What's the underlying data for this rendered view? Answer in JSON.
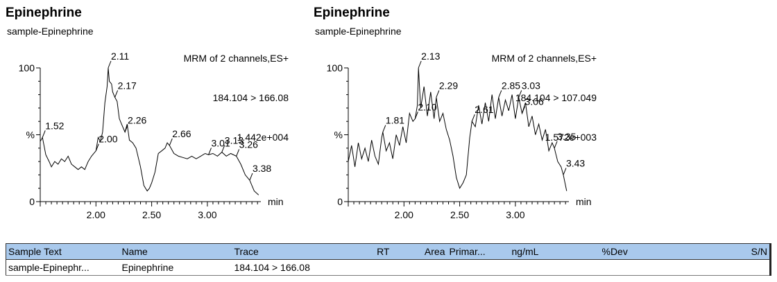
{
  "chart_data": [
    {
      "type": "line",
      "title": "Epinephrine",
      "sample": "sample-Epinephrine",
      "info": [
        "MRM of 2 channels,ES+",
        "184.104 > 166.08",
        "1.442e+004"
      ],
      "xlabel": "min",
      "ylabel": "%",
      "xlim": [
        1.5,
        3.48
      ],
      "ylim": [
        0,
        100
      ],
      "xticks": [
        "2.00",
        "2.50",
        "3.00"
      ],
      "xtick_values": [
        2.0,
        2.5,
        3.0
      ],
      "yticks": [
        "0",
        "100"
      ],
      "x": [
        1.5,
        1.52,
        1.55,
        1.58,
        1.6,
        1.63,
        1.66,
        1.69,
        1.72,
        1.75,
        1.78,
        1.81,
        1.84,
        1.87,
        1.9,
        1.93,
        1.96,
        2.0,
        2.02,
        2.04,
        2.06,
        2.08,
        2.1,
        2.11,
        2.12,
        2.14,
        2.15,
        2.17,
        2.19,
        2.21,
        2.23,
        2.26,
        2.28,
        2.3,
        2.33,
        2.36,
        2.4,
        2.43,
        2.46,
        2.48,
        2.5,
        2.53,
        2.56,
        2.59,
        2.62,
        2.64,
        2.66,
        2.7,
        2.74,
        2.78,
        2.82,
        2.86,
        2.9,
        2.94,
        2.98,
        3.01,
        3.05,
        3.09,
        3.13,
        3.17,
        3.21,
        3.26,
        3.3,
        3.34,
        3.38,
        3.42,
        3.46
      ],
      "y": [
        45,
        48,
        35,
        30,
        26,
        30,
        28,
        32,
        30,
        34,
        28,
        26,
        24,
        26,
        24,
        30,
        34,
        38,
        48,
        45,
        52,
        74,
        86,
        100,
        90,
        88,
        82,
        78,
        75,
        62,
        58,
        52,
        58,
        46,
        44,
        40,
        26,
        12,
        8,
        10,
        14,
        22,
        36,
        38,
        40,
        44,
        42,
        36,
        34,
        33,
        32,
        34,
        32,
        34,
        36,
        35,
        36,
        34,
        37,
        34,
        36,
        34,
        28,
        20,
        16,
        8,
        5
      ],
      "peak_labels": [
        {
          "x": 1.52,
          "y": 48,
          "text": "1.52"
        },
        {
          "x": 2.0,
          "y": 38,
          "text": "2.00"
        },
        {
          "x": 2.11,
          "y": 100,
          "text": "2.11"
        },
        {
          "x": 2.17,
          "y": 78,
          "text": "2.17"
        },
        {
          "x": 2.26,
          "y": 52,
          "text": "2.26"
        },
        {
          "x": 2.66,
          "y": 42,
          "text": "2.66"
        },
        {
          "x": 3.01,
          "y": 35,
          "text": "3.01"
        },
        {
          "x": 3.13,
          "y": 37,
          "text": "3.13"
        },
        {
          "x": 3.26,
          "y": 34,
          "text": "3.26"
        },
        {
          "x": 3.38,
          "y": 16,
          "text": "3.38"
        }
      ]
    },
    {
      "type": "line",
      "title": "Epinephrine",
      "sample": "sample-Epinephrine",
      "info": [
        "MRM of 2 channels,ES+",
        "184.104 > 107.049",
        "1.572e+003"
      ],
      "xlabel": "min",
      "ylabel": "%",
      "xlim": [
        1.5,
        3.48
      ],
      "ylim": [
        0,
        100
      ],
      "xticks": [
        "2.00",
        "2.50",
        "3.00"
      ],
      "xtick_values": [
        2.0,
        2.5,
        3.0
      ],
      "yticks": [
        "0",
        "100"
      ],
      "x": [
        1.5,
        1.53,
        1.56,
        1.59,
        1.62,
        1.65,
        1.68,
        1.71,
        1.74,
        1.77,
        1.8,
        1.81,
        1.84,
        1.87,
        1.9,
        1.93,
        1.96,
        1.99,
        2.02,
        2.05,
        2.08,
        2.1,
        2.12,
        2.13,
        2.15,
        2.18,
        2.21,
        2.24,
        2.27,
        2.29,
        2.32,
        2.35,
        2.38,
        2.41,
        2.44,
        2.47,
        2.5,
        2.53,
        2.56,
        2.59,
        2.61,
        2.64,
        2.67,
        2.7,
        2.73,
        2.76,
        2.79,
        2.82,
        2.85,
        2.88,
        2.91,
        2.94,
        2.97,
        3.0,
        3.03,
        3.06,
        3.09,
        3.12,
        3.15,
        3.18,
        3.21,
        3.24,
        3.27,
        3.3,
        3.33,
        3.35,
        3.38,
        3.41,
        3.43,
        3.46
      ],
      "y": [
        30,
        42,
        26,
        44,
        32,
        40,
        30,
        46,
        34,
        28,
        48,
        52,
        38,
        44,
        32,
        50,
        42,
        56,
        44,
        66,
        60,
        62,
        72,
        100,
        70,
        86,
        64,
        82,
        62,
        78,
        60,
        66,
        54,
        46,
        34,
        18,
        10,
        14,
        20,
        48,
        60,
        56,
        72,
        58,
        74,
        60,
        80,
        62,
        78,
        64,
        76,
        68,
        80,
        62,
        78,
        66,
        74,
        56,
        64,
        50,
        58,
        46,
        54,
        38,
        44,
        40,
        30,
        26,
        20,
        8
      ],
      "peak_labels": [
        {
          "x": 1.81,
          "y": 52,
          "text": "1.81"
        },
        {
          "x": 2.1,
          "y": 62,
          "text": "2.10"
        },
        {
          "x": 2.13,
          "y": 100,
          "text": "2.13"
        },
        {
          "x": 2.29,
          "y": 78,
          "text": "2.29"
        },
        {
          "x": 2.61,
          "y": 60,
          "text": "2.61"
        },
        {
          "x": 2.85,
          "y": 78,
          "text": "2.85"
        },
        {
          "x": 3.03,
          "y": 78,
          "text": "3.03"
        },
        {
          "x": 3.06,
          "y": 66,
          "text": "3.06"
        },
        {
          "x": 3.35,
          "y": 40,
          "text": "3.35"
        },
        {
          "x": 3.43,
          "y": 20,
          "text": "3.43"
        }
      ]
    }
  ],
  "results_table": {
    "columns": [
      {
        "label": "Sample Text",
        "align": "left"
      },
      {
        "label": "Name",
        "align": "left"
      },
      {
        "label": "Trace",
        "align": "left"
      },
      {
        "label": "RT",
        "align": "right"
      },
      {
        "label": "Area",
        "align": "right"
      },
      {
        "label": "Primar...",
        "align": "left"
      },
      {
        "label": "ng/mL",
        "align": "left"
      },
      {
        "label": "%Dev",
        "align": "left"
      },
      {
        "label": "S/N",
        "align": "right"
      }
    ],
    "rows": [
      [
        "sample-Epinephr...",
        "Epinephrine",
        "184.104 > 166.08",
        "",
        "",
        "",
        "",
        "",
        ""
      ]
    ],
    "header_color": "#a9c9ec"
  }
}
